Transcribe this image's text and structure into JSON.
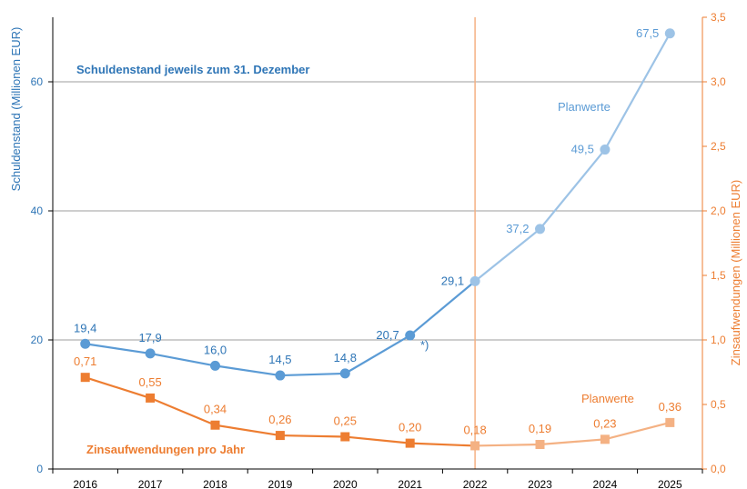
{
  "colors": {
    "debt_actual": "#5b9bd5",
    "debt_plan": "#9dc3e6",
    "interest_actual": "#ed7d31",
    "interest_plan": "#f4b183",
    "left_axis": "#2e75b6",
    "right_axis": "#ed7d31",
    "label_debt_actual": "#2e75b6",
    "label_debt_plan": "#5b9bd5",
    "label_interest": "#ed7d31",
    "label_interest_plan": "#f4b183",
    "grid_left": "#aac8e6",
    "grid_right": "#f8cbad",
    "grid_major": "#9e9e9e",
    "axis": "#000000"
  },
  "chart_data": {
    "type": "line",
    "x": [
      "2016",
      "2017",
      "2018",
      "2019",
      "2020",
      "2021",
      "2022",
      "2023",
      "2024",
      "2025"
    ],
    "series": [
      {
        "axis": "left",
        "values": [
          19.4,
          17.9,
          16.0,
          14.5,
          14.8,
          20.7,
          29.1,
          37.2,
          49.5,
          67.5
        ],
        "labels": [
          "19,4",
          "17,9",
          "16,0",
          "14,5",
          "14,8",
          "20,7",
          "29,1",
          "37,2",
          "49,5",
          "67,5"
        ],
        "marker": "circle",
        "plan_from_index": 6
      },
      {
        "axis": "right",
        "values": [
          0.71,
          0.55,
          0.34,
          0.26,
          0.25,
          0.2,
          0.18,
          0.19,
          0.23,
          0.36
        ],
        "labels": [
          "0,71",
          "0,55",
          "0,34",
          "0,26",
          "0,25",
          "0,20",
          "0,18",
          "0,19",
          "0,23",
          "0,36"
        ],
        "marker": "square",
        "plan_from_index": 6
      }
    ],
    "y_left": {
      "label": "Schuldenstand (Millionen EUR)",
      "min": 0,
      "max": 70,
      "ticks": [
        0,
        20,
        40,
        60
      ],
      "tick_labels": [
        "0",
        "20",
        "40",
        "60"
      ]
    },
    "y_right": {
      "label": "Zinsaufwendungen (Millionen EUR)",
      "min": 0,
      "max": 3.5,
      "ticks": [
        0,
        0.5,
        1.0,
        1.5,
        2.0,
        2.5,
        3.0,
        3.5
      ],
      "tick_labels": [
        "0,0",
        "0,5",
        "1,0",
        "1,5",
        "2,0",
        "2,5",
        "3,0",
        "3,5"
      ]
    },
    "divider_at": "2022",
    "annotations": {
      "debt_title": "Schuldenstand jeweils zum 31. Dezember",
      "debt_plan": "Planwerte",
      "interest_title": "Zinsaufwendungen  pro Jahr",
      "interest_plan": "Planwerte",
      "footnote_mark": "*)"
    },
    "grid": true,
    "legend": "none"
  }
}
